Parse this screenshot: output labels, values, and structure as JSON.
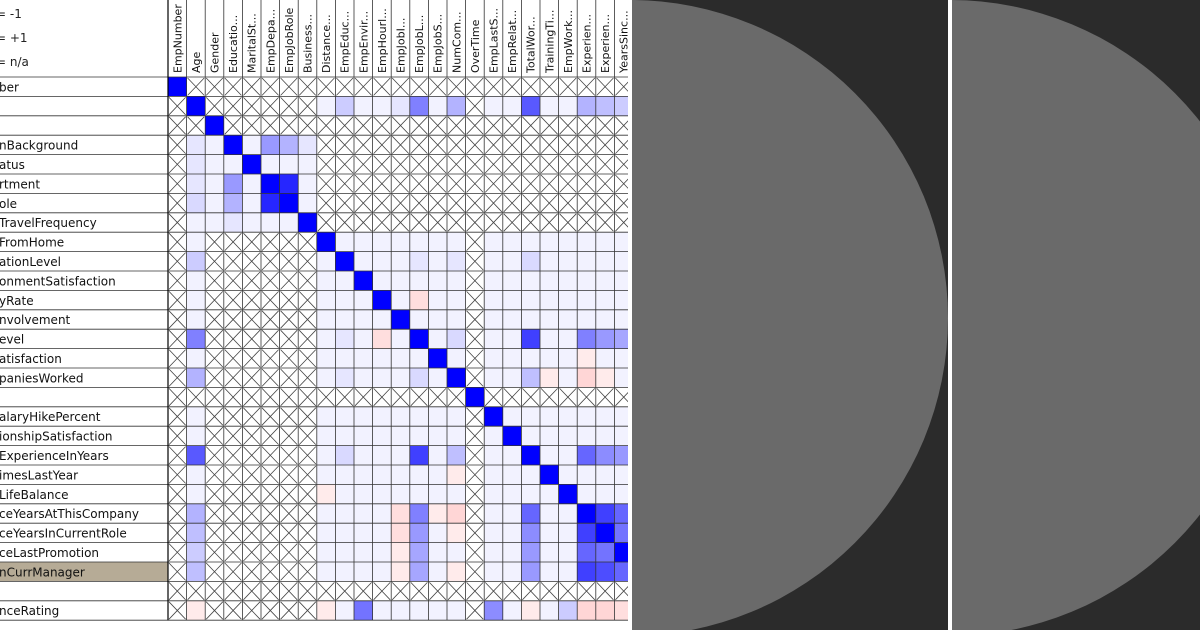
{
  "legend": [
    "= -1",
    "= +1",
    "= n/a"
  ],
  "chart_data": {
    "type": "heatmap",
    "title": "",
    "columns": [
      "EmpNumber",
      "Age",
      "Gender",
      "Educatio...",
      "MaritalSt...",
      "EmpDepa...",
      "EmpJobRole",
      "Business...",
      "Distance...",
      "EmpEduc...",
      "EmpEnvir...",
      "EmpHourl...",
      "EmpJobI...",
      "EmpJobL...",
      "EmpJobS...",
      "NumCom...",
      "OverTime",
      "EmpLastS...",
      "EmpRelat...",
      "TotalWor...",
      "TrainingTi...",
      "EmpWork...",
      "Experien...",
      "Experien...",
      "YearsSinc..."
    ],
    "rows": [
      "ber",
      "",
      "",
      "nBackground",
      "atus",
      "rtment",
      "ole",
      "TravelFrequency",
      "FromHome",
      "ationLevel",
      "onmentSatisfaction",
      "yRate",
      "nvolvement",
      "evel",
      "atisfaction",
      "paniesWorked",
      "",
      "alaryHikePercent",
      "ionshipSatisfaction",
      "ExperienceInYears",
      "imesLastYear",
      "LifeBalance",
      "ceYearsAtThisCompany",
      "ceYearsInCurrentRole",
      "ceLastPromotion",
      "nCurrManager",
      "",
      "nceRating"
    ],
    "selected_row": 25,
    "na_rows": [
      0,
      1,
      2,
      3,
      4,
      5,
      6,
      7,
      16,
      26
    ],
    "na_cols": [
      0,
      2,
      3,
      4,
      5,
      6,
      7,
      16
    ],
    "values": [
      [
        1,
        null,
        null,
        null,
        null,
        null,
        null,
        null,
        null,
        null,
        null,
        null,
        null,
        null,
        null,
        null,
        null,
        null,
        null,
        null,
        null,
        null,
        null,
        null,
        null
      ],
      [
        null,
        1,
        null,
        null,
        null,
        null,
        null,
        null,
        0.05,
        0.2,
        0.05,
        0.05,
        0.1,
        0.5,
        0.05,
        0.3,
        null,
        0.05,
        0.05,
        0.65,
        0.05,
        0.05,
        0.3,
        0.25,
        0.2
      ],
      [
        null,
        null,
        1,
        null,
        null,
        null,
        null,
        null,
        null,
        null,
        null,
        null,
        null,
        null,
        null,
        null,
        null,
        null,
        null,
        null,
        null,
        null,
        null,
        null,
        null
      ],
      [
        null,
        0.1,
        0.05,
        1,
        0.05,
        0.4,
        0.3,
        0.1,
        null,
        null,
        null,
        null,
        null,
        null,
        null,
        null,
        null,
        null,
        null,
        null,
        null,
        null,
        null,
        null,
        null
      ],
      [
        null,
        0.1,
        0.05,
        0.05,
        1,
        0.05,
        0.05,
        0.05,
        null,
        null,
        null,
        null,
        null,
        null,
        null,
        null,
        null,
        null,
        null,
        null,
        null,
        null,
        null,
        null,
        null
      ],
      [
        null,
        0.1,
        0.05,
        0.4,
        0.05,
        1,
        0.85,
        0.05,
        null,
        null,
        null,
        null,
        null,
        null,
        null,
        null,
        null,
        null,
        null,
        null,
        null,
        null,
        null,
        null,
        null
      ],
      [
        null,
        0.15,
        0.05,
        0.3,
        0.05,
        0.85,
        1,
        0.05,
        null,
        null,
        null,
        null,
        null,
        null,
        null,
        null,
        null,
        null,
        null,
        null,
        null,
        null,
        null,
        null,
        null
      ],
      [
        null,
        0.05,
        0.05,
        0.1,
        0.05,
        0.05,
        0.05,
        1,
        null,
        null,
        null,
        null,
        null,
        null,
        null,
        null,
        null,
        null,
        null,
        null,
        null,
        null,
        null,
        null,
        null
      ],
      [
        null,
        0.05,
        null,
        null,
        null,
        null,
        null,
        null,
        1,
        0.05,
        0.05,
        0.05,
        0.05,
        0.05,
        0.05,
        0.05,
        null,
        0.05,
        0.05,
        0.05,
        0.05,
        0.05,
        0.05,
        0.05,
        0.05
      ],
      [
        null,
        0.2,
        null,
        null,
        null,
        null,
        null,
        null,
        0.05,
        1,
        0.05,
        0.05,
        0.05,
        0.1,
        0.05,
        0.1,
        null,
        0.05,
        0.05,
        0.15,
        0.05,
        0.05,
        0.05,
        0.05,
        0.05
      ],
      [
        null,
        0.05,
        null,
        null,
        null,
        null,
        null,
        null,
        0.05,
        0.05,
        1,
        0.05,
        0.05,
        0.05,
        0.05,
        0.05,
        null,
        0.05,
        0.05,
        0.05,
        0.05,
        0.05,
        0.05,
        0.05,
        0.05
      ],
      [
        null,
        0.05,
        null,
        null,
        null,
        null,
        null,
        null,
        0.05,
        0.05,
        0.05,
        1,
        0.05,
        -0.08,
        0.05,
        0.05,
        null,
        0.05,
        0.05,
        0.05,
        0.05,
        0.05,
        0.05,
        0.05,
        0.05
      ],
      [
        null,
        0.05,
        null,
        null,
        null,
        null,
        null,
        null,
        0.05,
        0.05,
        0.05,
        0.05,
        1,
        0.05,
        0.05,
        0.05,
        null,
        0.05,
        0.05,
        0.05,
        0.05,
        0.05,
        0.05,
        0.05,
        0.05
      ],
      [
        null,
        0.5,
        null,
        null,
        null,
        null,
        null,
        null,
        0.05,
        0.1,
        0.05,
        -0.08,
        0.05,
        1,
        0.05,
        0.15,
        null,
        0.05,
        0.05,
        0.75,
        0.05,
        0.05,
        0.5,
        0.4,
        0.35
      ],
      [
        null,
        0.05,
        null,
        null,
        null,
        null,
        null,
        null,
        0.05,
        0.05,
        0.05,
        0.05,
        0.05,
        0.05,
        1,
        0.05,
        null,
        0.05,
        0.05,
        0.05,
        0.05,
        0.05,
        -0.05,
        0.05,
        0.05
      ],
      [
        null,
        0.3,
        null,
        null,
        null,
        null,
        null,
        null,
        0.05,
        0.1,
        0.05,
        0.05,
        0.05,
        0.15,
        0.05,
        1,
        null,
        0.05,
        0.05,
        0.25,
        -0.05,
        0.05,
        -0.1,
        -0.05,
        0.05
      ],
      [
        null,
        null,
        null,
        null,
        null,
        null,
        null,
        null,
        null,
        null,
        null,
        null,
        null,
        null,
        null,
        null,
        1,
        null,
        null,
        null,
        null,
        null,
        null,
        null,
        null
      ],
      [
        null,
        0.05,
        null,
        null,
        null,
        null,
        null,
        null,
        0.05,
        0.05,
        0.05,
        0.05,
        0.05,
        0.05,
        0.05,
        0.05,
        null,
        1,
        0.05,
        0.05,
        0.05,
        0.05,
        0.05,
        0.05,
        0.05
      ],
      [
        null,
        0.05,
        null,
        null,
        null,
        null,
        null,
        null,
        0.05,
        0.05,
        0.05,
        0.05,
        0.05,
        0.05,
        0.05,
        0.05,
        null,
        0.05,
        1,
        0.05,
        0.05,
        0.05,
        0.05,
        0.05,
        0.05
      ],
      [
        null,
        0.65,
        null,
        null,
        null,
        null,
        null,
        null,
        0.05,
        0.15,
        0.05,
        0.05,
        0.05,
        0.75,
        0.05,
        0.25,
        null,
        0.05,
        0.05,
        1,
        0.05,
        0.05,
        0.6,
        0.45,
        0.4
      ],
      [
        null,
        0.05,
        null,
        null,
        null,
        null,
        null,
        null,
        0.05,
        0.05,
        0.05,
        0.05,
        0.05,
        0.05,
        0.05,
        -0.05,
        null,
        0.05,
        0.05,
        0.05,
        1,
        0.05,
        0.05,
        0.05,
        0.05
      ],
      [
        null,
        0.05,
        null,
        null,
        null,
        null,
        null,
        null,
        -0.05,
        0.05,
        0.05,
        0.05,
        0.05,
        0.05,
        0.05,
        0.05,
        null,
        0.05,
        0.05,
        0.05,
        0.05,
        1,
        0.05,
        0.05,
        0.05
      ],
      [
        null,
        0.3,
        null,
        null,
        null,
        null,
        null,
        null,
        0.05,
        0.05,
        0.05,
        0.05,
        -0.08,
        0.5,
        -0.05,
        -0.1,
        null,
        0.05,
        0.05,
        0.6,
        0.05,
        0.05,
        1,
        0.75,
        0.6
      ],
      [
        null,
        0.25,
        null,
        null,
        null,
        null,
        null,
        null,
        0.05,
        0.05,
        0.05,
        0.05,
        -0.08,
        0.4,
        0.05,
        -0.05,
        null,
        0.05,
        0.05,
        0.45,
        0.05,
        0.05,
        0.75,
        1,
        0.55
      ],
      [
        null,
        0.2,
        null,
        null,
        null,
        null,
        null,
        null,
        0.05,
        0.05,
        0.05,
        0.05,
        -0.05,
        0.35,
        0.05,
        0.05,
        null,
        0.05,
        0.05,
        0.4,
        0.05,
        0.05,
        0.6,
        0.55,
        1
      ],
      [
        null,
        0.25,
        null,
        null,
        null,
        null,
        null,
        null,
        0.05,
        0.05,
        0.05,
        0.05,
        -0.05,
        0.35,
        0.05,
        -0.05,
        null,
        0.05,
        0.05,
        0.4,
        0.05,
        0.05,
        0.75,
        0.7,
        0.6
      ],
      [
        null,
        null,
        null,
        null,
        null,
        null,
        null,
        null,
        null,
        null,
        null,
        null,
        null,
        null,
        null,
        null,
        null,
        null,
        null,
        null,
        null,
        null,
        null,
        null,
        null
      ],
      [
        null,
        -0.05,
        null,
        null,
        null,
        null,
        null,
        null,
        -0.05,
        0.05,
        0.55,
        0.05,
        0.05,
        0.05,
        0.05,
        0.05,
        null,
        0.45,
        0.05,
        -0.05,
        0.05,
        0.2,
        -0.1,
        -0.1,
        -0.08
      ]
    ]
  },
  "colors": {
    "positive": "#0000ff",
    "negative": "#ff0000",
    "background": "#ffffff",
    "grid": "#333333",
    "selected_row": "#b6ab96",
    "outer_background": "#2b2b2b",
    "disc": "#6a6a6a"
  }
}
